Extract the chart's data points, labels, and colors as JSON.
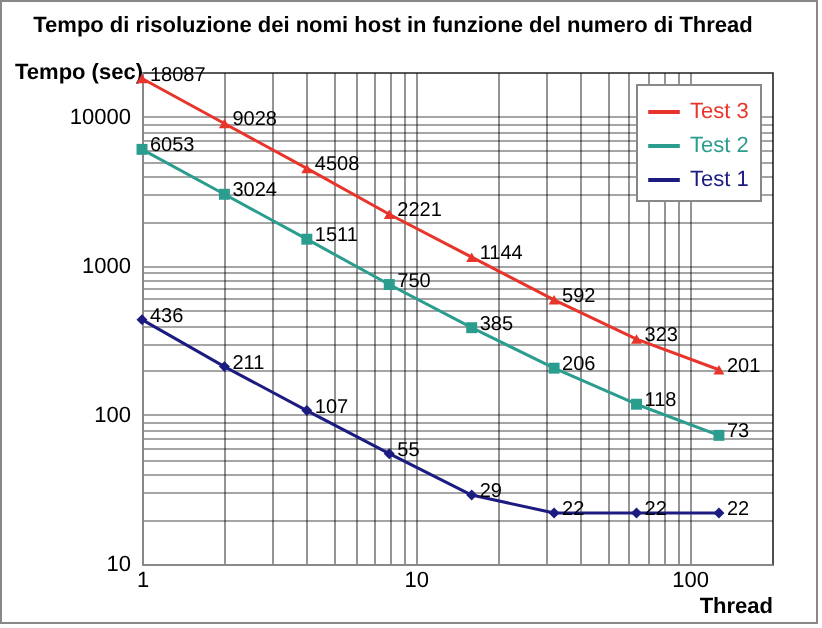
{
  "chart_data": {
    "type": "line",
    "title": "Tempo di risoluzione dei nomi host in funzione del numero di Thread",
    "xlabel": "Thread",
    "ylabel": "Tempo (sec)",
    "x": [
      1,
      2,
      4,
      8,
      16,
      32,
      64,
      128
    ],
    "series": [
      {
        "name": "Test 3",
        "color": "#e8352c",
        "marker": "triangle",
        "values": [
          18087,
          9028,
          4508,
          2221,
          1144,
          592,
          323,
          201
        ]
      },
      {
        "name": "Test 2",
        "color": "#2a9d8f",
        "marker": "square",
        "values": [
          6053,
          3024,
          1511,
          750,
          385,
          206,
          118,
          73
        ]
      },
      {
        "name": "Test 1",
        "color": "#1c1c80",
        "marker": "diamond",
        "values": [
          436,
          211,
          107,
          55,
          29,
          22,
          22,
          22
        ]
      }
    ],
    "log": "xy",
    "xlim": [
      1,
      200
    ],
    "ylim": [
      10,
      20000
    ],
    "xticks": [
      1,
      {
        "value": 2,
        "label": null
      },
      {
        "value": 3,
        "label": null
      },
      {
        "value": 4,
        "label": null
      },
      {
        "value": 5,
        "label": null
      },
      {
        "value": 6,
        "label": null
      },
      {
        "value": 7,
        "label": null
      },
      {
        "value": 8,
        "label": null
      },
      {
        "value": 9,
        "label": null
      },
      10,
      {
        "value": 20,
        "label": null
      },
      {
        "value": 30,
        "label": null
      },
      {
        "value": 40,
        "label": null
      },
      {
        "value": 50,
        "label": null
      },
      {
        "value": 60,
        "label": null
      },
      {
        "value": 70,
        "label": null
      },
      {
        "value": 80,
        "label": null
      },
      {
        "value": 90,
        "label": null
      },
      100,
      {
        "value": 200,
        "label": null
      }
    ],
    "yticks": [
      10,
      {
        "value": 20,
        "label": null
      },
      {
        "value": 30,
        "label": null
      },
      {
        "value": 40,
        "label": null
      },
      {
        "value": 50,
        "label": null
      },
      {
        "value": 60,
        "label": null
      },
      {
        "value": 70,
        "label": null
      },
      {
        "value": 80,
        "label": null
      },
      {
        "value": 90,
        "label": null
      },
      100,
      {
        "value": 200,
        "label": null
      },
      {
        "value": 300,
        "label": null
      },
      {
        "value": 400,
        "label": null
      },
      {
        "value": 500,
        "label": null
      },
      {
        "value": 600,
        "label": null
      },
      {
        "value": 700,
        "label": null
      },
      {
        "value": 800,
        "label": null
      },
      {
        "value": 900,
        "label": null
      },
      1000,
      {
        "value": 2000,
        "label": null
      },
      {
        "value": 3000,
        "label": null
      },
      {
        "value": 4000,
        "label": null
      },
      {
        "value": 5000,
        "label": null
      },
      {
        "value": 6000,
        "label": null
      },
      {
        "value": 7000,
        "label": null
      },
      {
        "value": 8000,
        "label": null
      },
      {
        "value": 9000,
        "label": null
      },
      10000,
      {
        "value": 20000,
        "label": null
      }
    ],
    "grid": true,
    "legend": "top right",
    "data_labels": true,
    "line_style": "solid"
  }
}
